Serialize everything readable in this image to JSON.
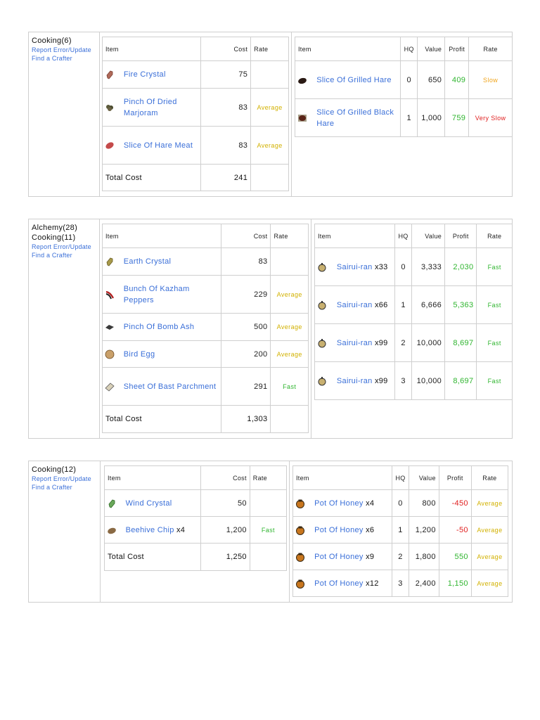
{
  "links": {
    "report": "Report Error/Update",
    "find": "Find a Crafter"
  },
  "colors": {
    "link": "#3a6fd8",
    "average": "#d2b100",
    "fast": "#2fb52f",
    "slow": "#f0a51c",
    "very_slow": "#e02020"
  },
  "headers": {
    "item": "Item",
    "cost": "Cost",
    "rate": "Rate",
    "hq": "HQ",
    "value": "Value",
    "profit": "Profit",
    "total": "Total Cost"
  },
  "recipes": [
    {
      "crafts": [
        "Cooking(6)"
      ],
      "ingredients": [
        {
          "name": "Fire Crystal",
          "qty": "",
          "cost": "75",
          "rate": "",
          "icon": "fire-crystal-icon"
        },
        {
          "name": "Pinch Of Dried Marjoram",
          "qty": "",
          "cost": "83",
          "rate": "Average",
          "icon": "marjoram-icon"
        },
        {
          "name": "Slice Of Hare Meat",
          "qty": "",
          "cost": "83",
          "rate": "Average",
          "icon": "hare-meat-icon"
        }
      ],
      "total_cost": "241",
      "results": [
        {
          "name": "Slice Of Grilled Hare",
          "qty": "",
          "hq": "0",
          "value": "650",
          "profit": "409",
          "rate": "Slow",
          "icon": "grilled-hare-icon"
        },
        {
          "name": "Slice Of Grilled Black Hare",
          "qty": "",
          "hq": "1",
          "value": "1,000",
          "profit": "759",
          "rate": "Very Slow",
          "icon": "grilled-black-hare-icon"
        }
      ]
    },
    {
      "crafts": [
        "Alchemy(28)",
        "Cooking(11)"
      ],
      "ingredients": [
        {
          "name": "Earth Crystal",
          "qty": "",
          "cost": "83",
          "rate": "",
          "icon": "earth-crystal-icon"
        },
        {
          "name": "Bunch Of Kazham Peppers",
          "qty": "",
          "cost": "229",
          "rate": "Average",
          "icon": "peppers-icon"
        },
        {
          "name": "Pinch Of Bomb Ash",
          "qty": "",
          "cost": "500",
          "rate": "Average",
          "icon": "bomb-ash-icon"
        },
        {
          "name": "Bird Egg",
          "qty": "",
          "cost": "200",
          "rate": "Average",
          "icon": "egg-icon"
        },
        {
          "name": "Sheet Of Bast Parchment",
          "qty": "",
          "cost": "291",
          "rate": "Fast",
          "icon": "parchment-icon"
        }
      ],
      "total_cost": "1,303",
      "results": [
        {
          "name": "Sairui-ran",
          "qty": "x33",
          "hq": "0",
          "value": "3,333",
          "profit": "2,030",
          "rate": "Fast",
          "icon": "sairui-ran-icon"
        },
        {
          "name": "Sairui-ran",
          "qty": "x66",
          "hq": "1",
          "value": "6,666",
          "profit": "5,363",
          "rate": "Fast",
          "icon": "sairui-ran-icon"
        },
        {
          "name": "Sairui-ran",
          "qty": "x99",
          "hq": "2",
          "value": "10,000",
          "profit": "8,697",
          "rate": "Fast",
          "icon": "sairui-ran-icon"
        },
        {
          "name": "Sairui-ran",
          "qty": "x99",
          "hq": "3",
          "value": "10,000",
          "profit": "8,697",
          "rate": "Fast",
          "icon": "sairui-ran-icon"
        }
      ]
    },
    {
      "crafts": [
        "Cooking(12)"
      ],
      "ingredients": [
        {
          "name": "Wind Crystal",
          "qty": "",
          "cost": "50",
          "rate": "",
          "icon": "wind-crystal-icon"
        },
        {
          "name": "Beehive Chip",
          "qty": "x4",
          "cost": "1,200",
          "rate": "Fast",
          "icon": "beehive-chip-icon"
        }
      ],
      "total_cost": "1,250",
      "results": [
        {
          "name": "Pot Of Honey",
          "qty": "x4",
          "hq": "0",
          "value": "800",
          "profit": "-450",
          "rate": "Average",
          "icon": "honey-pot-icon"
        },
        {
          "name": "Pot Of Honey",
          "qty": "x6",
          "hq": "1",
          "value": "1,200",
          "profit": "-50",
          "rate": "Average",
          "icon": "honey-pot-icon"
        },
        {
          "name": "Pot Of Honey",
          "qty": "x9",
          "hq": "2",
          "value": "1,800",
          "profit": "550",
          "rate": "Average",
          "icon": "honey-pot-icon"
        },
        {
          "name": "Pot Of Honey",
          "qty": "x12",
          "hq": "3",
          "value": "2,400",
          "profit": "1,150",
          "rate": "Average",
          "icon": "honey-pot-icon"
        }
      ]
    }
  ]
}
